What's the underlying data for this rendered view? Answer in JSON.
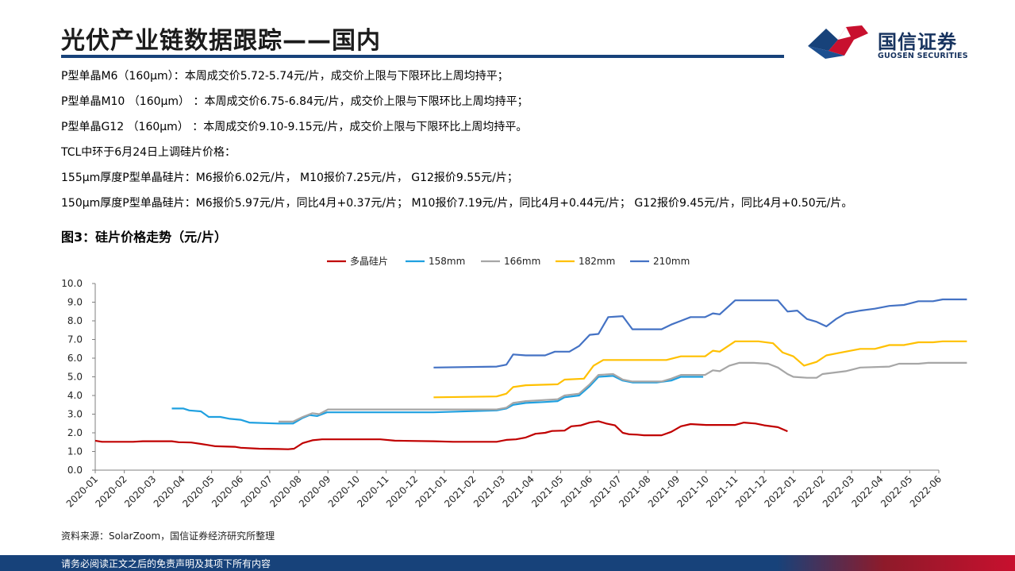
{
  "header": {
    "title": "光伏产业链数据跟踪——国内"
  },
  "logo": {
    "name_cn": "国信证券",
    "name_en": "GUOSEN SECURITIES",
    "colors": {
      "red": "#c8102e",
      "blue": "#17427a"
    }
  },
  "bullets": [
    "P型单晶M6（160μm）：本周成交价5.72-5.74元/片，成交价上限与下限环比上周均持平；",
    "P型单晶M10 （160μm） ：本周成交价6.75-6.84元/片，成交价上限与下限环比上周均持平；",
    "P型单晶G12 （160μm） ：本周成交价9.10-9.15元/片，成交价上限与下限环比上周均持平。",
    "TCL中环于6月24日上调硅片价格：",
    "155μm厚度P型单晶硅片：M6报价6.02元/片， M10报价7.25元/片， G12报价9.55元/片；",
    "150μm厚度P型单晶硅片：M6报价5.97元/片，同比4月+0.37元/片； M10报价7.19元/片，同比4月+0.44元/片； G12报价9.45元/片，同比4月+0.50元/片。"
  ],
  "chart_title": "图3：硅片价格走势（元/片）",
  "chart_data": {
    "type": "line",
    "x_type": "month",
    "x_start": "2020-01",
    "x_end": "2022-06",
    "x_ticks": [
      "2020-01",
      "2020-02",
      "2020-03",
      "2020-04",
      "2020-05",
      "2020-06",
      "2020-07",
      "2020-08",
      "2020-09",
      "2020-10",
      "2020-11",
      "2020-12",
      "2021-01",
      "2021-02",
      "2021-03",
      "2021-04",
      "2021-05",
      "2021-06",
      "2021-07",
      "2021-08",
      "2021-09",
      "2021-10",
      "2021-11",
      "2021-12",
      "2022-01",
      "2022-02",
      "2022-03",
      "2022-04",
      "2022-05",
      "2022-06"
    ],
    "ylim": [
      0,
      10
    ],
    "y_ticks": [
      "0.0",
      "1.0",
      "2.0",
      "3.0",
      "4.0",
      "5.0",
      "6.0",
      "7.0",
      "8.0",
      "9.0",
      "10.0"
    ],
    "legend_position": "top",
    "grid": false,
    "series": [
      {
        "name": "多晶硅片",
        "color": "#c00000",
        "points": [
          [
            "2020-01-01",
            1.58
          ],
          [
            "2020-01-08",
            1.52
          ],
          [
            "2020-02-10",
            1.52
          ],
          [
            "2020-02-20",
            1.55
          ],
          [
            "2020-03-20",
            1.55
          ],
          [
            "2020-03-27",
            1.5
          ],
          [
            "2020-04-10",
            1.48
          ],
          [
            "2020-04-27",
            1.35
          ],
          [
            "2020-05-05",
            1.28
          ],
          [
            "2020-05-25",
            1.25
          ],
          [
            "2020-06-01",
            1.2
          ],
          [
            "2020-06-20",
            1.15
          ],
          [
            "2020-07-10",
            1.13
          ],
          [
            "2020-07-20",
            1.12
          ],
          [
            "2020-07-26",
            1.15
          ],
          [
            "2020-08-05",
            1.45
          ],
          [
            "2020-08-15",
            1.6
          ],
          [
            "2020-08-25",
            1.65
          ],
          [
            "2020-10-25",
            1.65
          ],
          [
            "2020-11-10",
            1.58
          ],
          [
            "2020-12-20",
            1.55
          ],
          [
            "2021-01-10",
            1.52
          ],
          [
            "2021-02-25",
            1.52
          ],
          [
            "2021-03-05",
            1.62
          ],
          [
            "2021-03-15",
            1.65
          ],
          [
            "2021-03-25",
            1.75
          ],
          [
            "2021-04-05",
            1.95
          ],
          [
            "2021-04-15",
            2.0
          ],
          [
            "2021-04-22",
            2.1
          ],
          [
            "2021-05-05",
            2.12
          ],
          [
            "2021-05-12",
            2.35
          ],
          [
            "2021-05-22",
            2.4
          ],
          [
            "2021-06-01",
            2.55
          ],
          [
            "2021-06-10",
            2.62
          ],
          [
            "2021-06-18",
            2.5
          ],
          [
            "2021-06-27",
            2.4
          ],
          [
            "2021-07-05",
            2.0
          ],
          [
            "2021-07-12",
            1.92
          ],
          [
            "2021-07-20",
            1.9
          ],
          [
            "2021-07-27",
            1.87
          ],
          [
            "2021-08-15",
            1.87
          ],
          [
            "2021-08-25",
            2.05
          ],
          [
            "2021-09-05",
            2.35
          ],
          [
            "2021-09-15",
            2.47
          ],
          [
            "2021-10-01",
            2.42
          ],
          [
            "2021-11-01",
            2.42
          ],
          [
            "2021-11-10",
            2.55
          ],
          [
            "2021-11-22",
            2.5
          ],
          [
            "2021-12-01",
            2.4
          ],
          [
            "2021-12-15",
            2.3
          ],
          [
            "2021-12-25",
            2.08
          ]
        ]
      },
      {
        "name": "158mm",
        "color": "#1fa0e0",
        "points": [
          [
            "2020-03-20",
            3.3
          ],
          [
            "2020-04-02",
            3.3
          ],
          [
            "2020-04-08",
            3.2
          ],
          [
            "2020-04-20",
            3.15
          ],
          [
            "2020-04-28",
            2.85
          ],
          [
            "2020-05-10",
            2.85
          ],
          [
            "2020-05-20",
            2.75
          ],
          [
            "2020-06-01",
            2.7
          ],
          [
            "2020-06-10",
            2.55
          ],
          [
            "2020-07-10",
            2.5
          ],
          [
            "2020-07-25",
            2.5
          ],
          [
            "2020-08-05",
            2.8
          ],
          [
            "2020-08-12",
            2.95
          ],
          [
            "2020-08-20",
            2.9
          ],
          [
            "2020-08-30",
            3.1
          ],
          [
            "2020-12-20",
            3.1
          ],
          [
            "2021-02-25",
            3.2
          ],
          [
            "2021-03-05",
            3.3
          ],
          [
            "2021-03-12",
            3.5
          ],
          [
            "2021-03-25",
            3.6
          ],
          [
            "2021-04-15",
            3.65
          ],
          [
            "2021-04-28",
            3.7
          ],
          [
            "2021-05-05",
            3.9
          ],
          [
            "2021-05-20",
            4.0
          ],
          [
            "2021-06-01",
            4.5
          ],
          [
            "2021-06-10",
            5.0
          ],
          [
            "2021-06-25",
            5.05
          ],
          [
            "2021-07-05",
            4.8
          ],
          [
            "2021-07-15",
            4.7
          ],
          [
            "2021-08-10",
            4.7
          ],
          [
            "2021-08-25",
            4.8
          ],
          [
            "2021-09-05",
            5.0
          ],
          [
            "2021-09-28",
            5.0
          ]
        ]
      },
      {
        "name": "166mm",
        "color": "#a6a6a6",
        "points": [
          [
            "2020-07-10",
            2.6
          ],
          [
            "2020-07-25",
            2.6
          ],
          [
            "2020-08-05",
            2.85
          ],
          [
            "2020-08-15",
            3.05
          ],
          [
            "2020-08-22",
            3.0
          ],
          [
            "2020-09-01",
            3.25
          ],
          [
            "2021-02-25",
            3.25
          ],
          [
            "2021-03-05",
            3.35
          ],
          [
            "2021-03-12",
            3.6
          ],
          [
            "2021-03-25",
            3.7
          ],
          [
            "2021-04-28",
            3.8
          ],
          [
            "2021-05-05",
            4.0
          ],
          [
            "2021-05-20",
            4.1
          ],
          [
            "2021-06-01",
            4.6
          ],
          [
            "2021-06-10",
            5.1
          ],
          [
            "2021-06-25",
            5.15
          ],
          [
            "2021-07-05",
            4.85
          ],
          [
            "2021-07-15",
            4.75
          ],
          [
            "2021-08-15",
            4.75
          ],
          [
            "2021-08-25",
            4.9
          ],
          [
            "2021-09-05",
            5.1
          ],
          [
            "2021-09-30",
            5.1
          ],
          [
            "2021-10-08",
            5.35
          ],
          [
            "2021-10-15",
            5.3
          ],
          [
            "2021-10-25",
            5.6
          ],
          [
            "2021-11-05",
            5.75
          ],
          [
            "2021-11-20",
            5.75
          ],
          [
            "2021-12-05",
            5.7
          ],
          [
            "2021-12-15",
            5.5
          ],
          [
            "2021-12-25",
            5.15
          ],
          [
            "2022-01-01",
            5.0
          ],
          [
            "2022-01-15",
            4.95
          ],
          [
            "2022-01-25",
            4.95
          ],
          [
            "2022-02-01",
            5.15
          ],
          [
            "2022-02-25",
            5.3
          ],
          [
            "2022-03-10",
            5.5
          ],
          [
            "2022-04-10",
            5.55
          ],
          [
            "2022-04-20",
            5.7
          ],
          [
            "2022-05-10",
            5.7
          ],
          [
            "2022-05-20",
            5.75
          ],
          [
            "2022-06-30",
            5.75
          ]
        ]
      },
      {
        "name": "182mm",
        "color": "#ffc000",
        "points": [
          [
            "2020-12-20",
            3.9
          ],
          [
            "2021-02-25",
            3.95
          ],
          [
            "2021-03-05",
            4.1
          ],
          [
            "2021-03-12",
            4.45
          ],
          [
            "2021-03-25",
            4.55
          ],
          [
            "2021-04-28",
            4.6
          ],
          [
            "2021-05-05",
            4.85
          ],
          [
            "2021-05-25",
            4.9
          ],
          [
            "2021-06-05",
            5.6
          ],
          [
            "2021-06-15",
            5.9
          ],
          [
            "2021-08-20",
            5.9
          ],
          [
            "2021-09-05",
            6.1
          ],
          [
            "2021-09-30",
            6.1
          ],
          [
            "2021-10-08",
            6.4
          ],
          [
            "2021-10-15",
            6.35
          ],
          [
            "2021-11-01",
            6.9
          ],
          [
            "2021-11-25",
            6.9
          ],
          [
            "2021-12-10",
            6.8
          ],
          [
            "2021-12-20",
            6.3
          ],
          [
            "2022-01-01",
            6.1
          ],
          [
            "2022-01-12",
            5.6
          ],
          [
            "2022-01-25",
            5.8
          ],
          [
            "2022-02-05",
            6.15
          ],
          [
            "2022-02-20",
            6.3
          ],
          [
            "2022-03-10",
            6.5
          ],
          [
            "2022-03-25",
            6.5
          ],
          [
            "2022-04-10",
            6.7
          ],
          [
            "2022-04-25",
            6.7
          ],
          [
            "2022-05-10",
            6.85
          ],
          [
            "2022-05-25",
            6.85
          ],
          [
            "2022-06-05",
            6.9
          ],
          [
            "2022-06-30",
            6.9
          ]
        ]
      },
      {
        "name": "210mm",
        "color": "#4472c4",
        "points": [
          [
            "2020-12-20",
            5.5
          ],
          [
            "2021-02-25",
            5.55
          ],
          [
            "2021-03-05",
            5.65
          ],
          [
            "2021-03-12",
            6.2
          ],
          [
            "2021-03-25",
            6.15
          ],
          [
            "2021-04-15",
            6.15
          ],
          [
            "2021-04-25",
            6.35
          ],
          [
            "2021-05-10",
            6.35
          ],
          [
            "2021-05-20",
            6.65
          ],
          [
            "2021-06-01",
            7.25
          ],
          [
            "2021-06-10",
            7.3
          ],
          [
            "2021-06-20",
            8.2
          ],
          [
            "2021-07-05",
            8.25
          ],
          [
            "2021-07-15",
            7.55
          ],
          [
            "2021-08-15",
            7.55
          ],
          [
            "2021-08-25",
            7.8
          ],
          [
            "2021-09-05",
            8.0
          ],
          [
            "2021-09-15",
            8.2
          ],
          [
            "2021-09-30",
            8.2
          ],
          [
            "2021-10-08",
            8.4
          ],
          [
            "2021-10-15",
            8.35
          ],
          [
            "2021-11-01",
            9.1
          ],
          [
            "2021-11-15",
            9.1
          ],
          [
            "2021-12-15",
            9.1
          ],
          [
            "2021-12-25",
            8.5
          ],
          [
            "2022-01-05",
            8.55
          ],
          [
            "2022-01-15",
            8.1
          ],
          [
            "2022-01-25",
            7.95
          ],
          [
            "2022-02-05",
            7.7
          ],
          [
            "2022-02-15",
            8.1
          ],
          [
            "2022-02-25",
            8.4
          ],
          [
            "2022-03-10",
            8.55
          ],
          [
            "2022-03-25",
            8.65
          ],
          [
            "2022-04-10",
            8.8
          ],
          [
            "2022-04-25",
            8.85
          ],
          [
            "2022-05-10",
            9.05
          ],
          [
            "2022-05-25",
            9.05
          ],
          [
            "2022-06-05",
            9.15
          ],
          [
            "2022-06-30",
            9.15
          ]
        ]
      }
    ]
  },
  "source": "资料来源：SolarZoom，国信证券经济研究所整理",
  "footer": {
    "disclaimer": "请务必阅读正文之后的免责声明及其项下所有内容"
  }
}
